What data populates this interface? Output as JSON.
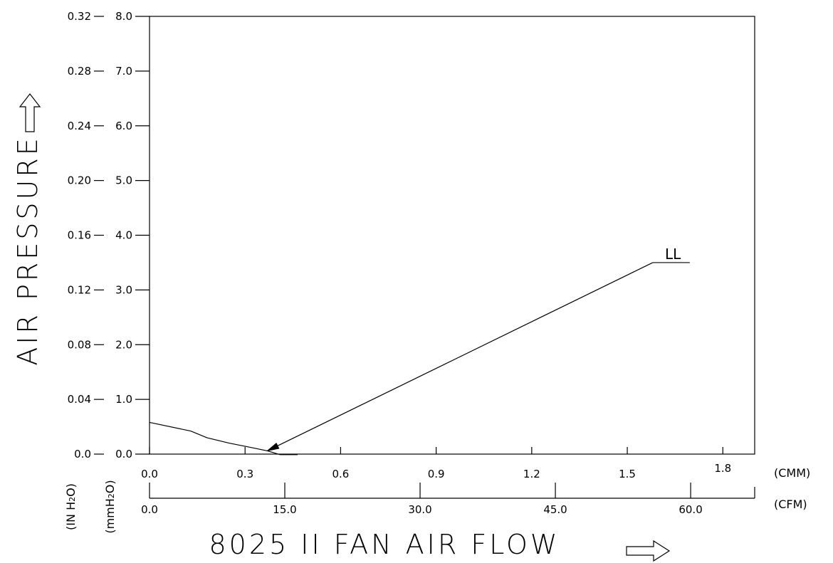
{
  "chart_data": {
    "type": "line",
    "title": "",
    "xlabel": "8025 II FAN AIR FLOW",
    "ylabel": "AIR PRESSURE",
    "grid": false,
    "x_axes": [
      {
        "unit": "(CMM)",
        "range": [
          0.0,
          1.9
        ],
        "ticks": [
          0.0,
          0.3,
          0.6,
          0.9,
          1.2,
          1.5,
          1.8
        ],
        "tick_labels": [
          "0.0",
          "0.3",
          "0.6",
          "0.9",
          "1.2",
          "1.5",
          "1.8"
        ]
      },
      {
        "unit": "(CFM)",
        "range": [
          0.0,
          67.1
        ],
        "ticks": [
          0.0,
          15.0,
          30.0,
          45.0,
          60.0
        ],
        "tick_labels": [
          "0.0",
          "15.0",
          "30.0",
          "45.0",
          "60.0"
        ]
      }
    ],
    "y_axes": [
      {
        "unit": "(mmH2O)",
        "unit_parts": [
          "(mmH",
          "2",
          "O)"
        ],
        "range": [
          0.0,
          8.0
        ],
        "ticks": [
          0.0,
          1.0,
          2.0,
          3.0,
          4.0,
          5.0,
          6.0,
          7.0,
          8.0
        ],
        "tick_labels": [
          "0.0",
          "1.0",
          "2.0",
          "3.0",
          "4.0",
          "5.0",
          "6.0",
          "7.0",
          "8.0"
        ]
      },
      {
        "unit": "(IN H2O)",
        "unit_parts": [
          "(IN H",
          "2",
          "O)"
        ],
        "range": [
          0.0,
          0.32
        ],
        "ticks": [
          0.0,
          0.04,
          0.08,
          0.12,
          0.16,
          0.2,
          0.24,
          0.28,
          0.32
        ],
        "tick_labels": [
          "0.0",
          "0.04",
          "0.08",
          "0.12",
          "0.16",
          "0.20",
          "0.24",
          "0.28",
          "0.32"
        ]
      }
    ],
    "series": [
      {
        "name": "LL",
        "x_unit": "CMM",
        "y_unit": "mmH2O",
        "x": [
          0.0,
          0.13,
          0.18,
          0.25,
          0.32,
          0.37,
          0.41,
          0.465
        ],
        "y": [
          0.58,
          0.42,
          0.3,
          0.2,
          0.12,
          0.06,
          -0.01,
          -0.01
        ],
        "label_anchor": {
          "x": 1.58,
          "y": 3.5
        }
      }
    ]
  }
}
